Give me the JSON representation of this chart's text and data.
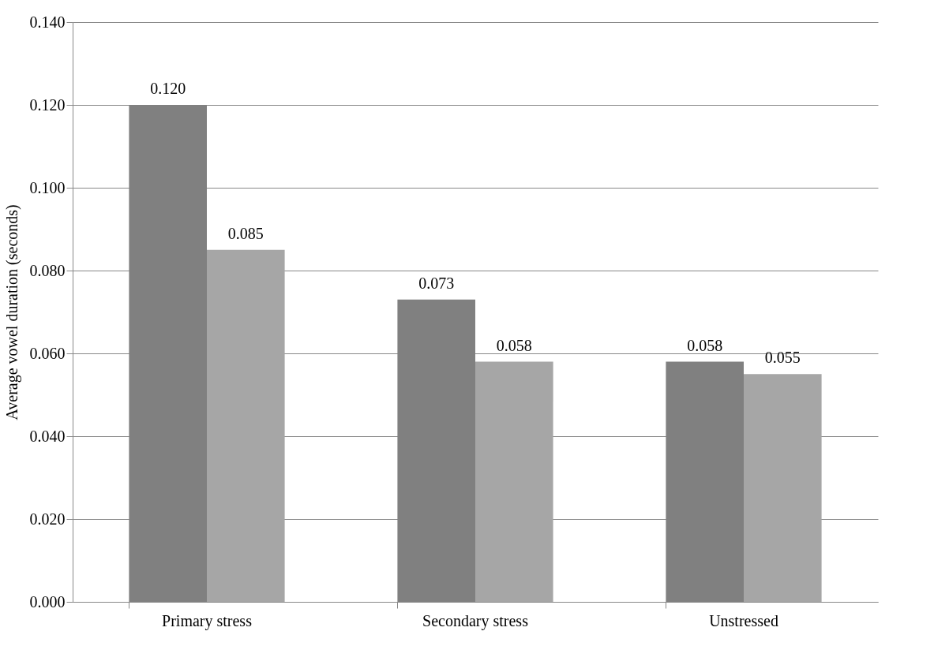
{
  "chart_data": {
    "type": "bar",
    "ylabel": "Average vowel duration (seconds)",
    "categories": [
      "Primary stress",
      "Secondary stress",
      "Unstressed"
    ],
    "series": [
      {
        "color": "#808080",
        "values": [
          0.12,
          0.073,
          0.058
        ],
        "value_labels": [
          "0.120",
          "0.073",
          "0.058"
        ]
      },
      {
        "color": "#a6a6a6",
        "values": [
          0.085,
          0.058,
          0.055
        ],
        "value_labels": [
          "0.085",
          "0.058",
          "0.055"
        ]
      }
    ],
    "ylim": [
      0,
      0.14
    ],
    "yticks": [
      {
        "value": 0,
        "label": "0.000"
      },
      {
        "value": 0.02,
        "label": "0.020"
      },
      {
        "value": 0.04,
        "label": "0.040"
      },
      {
        "value": 0.06,
        "label": "0.060"
      },
      {
        "value": 0.08,
        "label": "0.080"
      },
      {
        "value": 0.1,
        "label": "0.100"
      },
      {
        "value": 0.12,
        "label": "0.120"
      },
      {
        "value": 0.14,
        "label": "0.140"
      }
    ],
    "grid": "y"
  }
}
